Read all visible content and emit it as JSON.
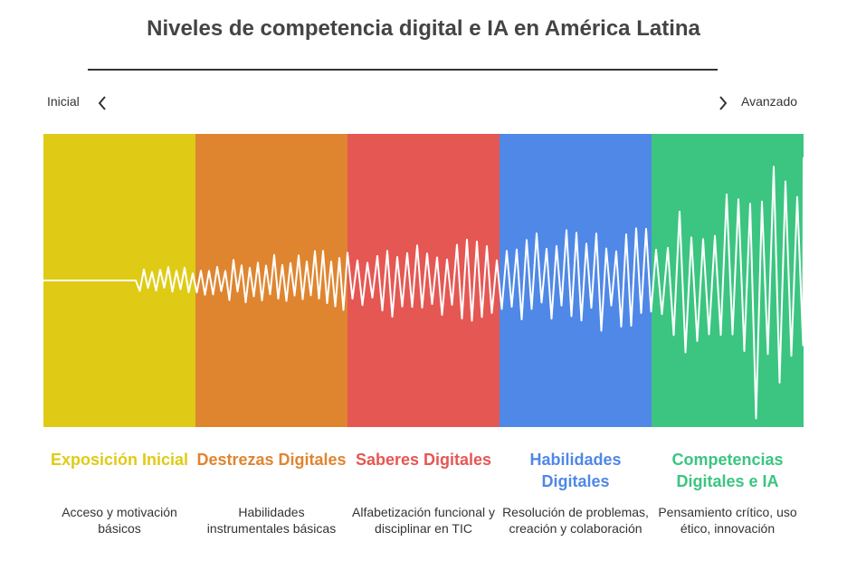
{
  "title": "Niveles de competencia digital e IA en América Latina",
  "axis": {
    "left_label": "Inicial",
    "right_label": "Avanzado",
    "left_icon": "chevron-left-icon",
    "right_icon": "chevron-right-icon"
  },
  "stages": [
    {
      "title": "Exposición Inicial",
      "description": "Acceso y motivación básicos",
      "color": "#DFCB15"
    },
    {
      "title": "Destrezas Digitales",
      "description": "Habilidades instrumentales básicas",
      "color": "#DF8530"
    },
    {
      "title": "Saberes Digitales",
      "description": "Alfabetización funcional y disciplinar en TIC",
      "color": "#E55753"
    },
    {
      "title": "Habilidades Digitales",
      "description": "Resolución de problemas, creación y colaboración",
      "color": "#4F88E6"
    },
    {
      "title": "Competencias Digitales e IA",
      "description": "Pensamiento crítico, uso ético, innovación",
      "color": "#3BC580"
    }
  ],
  "waveform": {
    "color": "#FFFFFF",
    "icon": "waveform-graphic"
  }
}
